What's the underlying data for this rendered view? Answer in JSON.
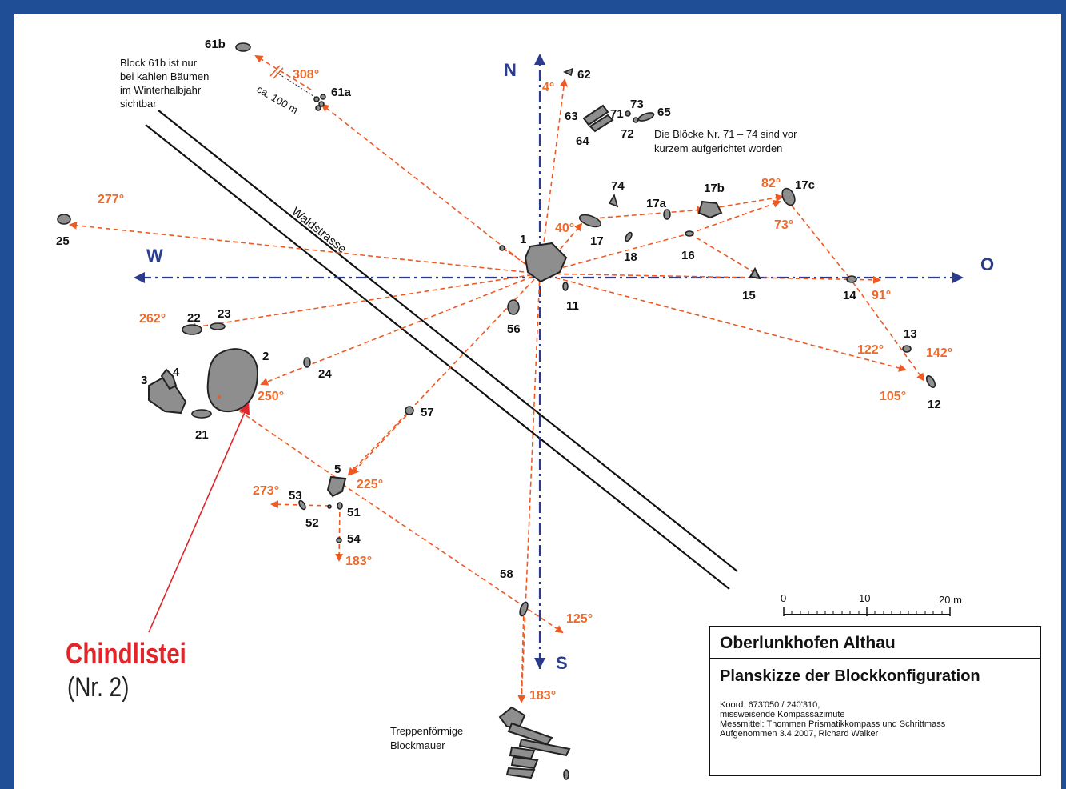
{
  "title": "Oberlunkhofen Althau",
  "subtitle": "Planskizze der Blockkonfiguration",
  "meta": [
    "Koord. 673'050 / 240'310,",
    "missweisende Kompassazimute",
    "Messmittel: Thommen Prismatikkompass und Schrittmass",
    "Aufgenommen 3.4.2007, Richard Walker"
  ],
  "highlight": {
    "name": "Chindlistei",
    "sub": "(Nr. 2)",
    "color": "#e0262a"
  },
  "directions": {
    "north": "N",
    "south": "S",
    "west": "W",
    "east": "O"
  },
  "road_label": "Waldstrasse",
  "notes": {
    "block61b": [
      "Block 61b ist nur",
      "bei kahlen Bäumen",
      "im Winterhalbjahr",
      "sichtbar"
    ],
    "blocks71_74": [
      "Die Blöcke Nr. 71 – 74 sind vor",
      "kurzem aufgerichtet worden"
    ],
    "distance": "ca. 100 m",
    "wall": [
      "Treppenförmige",
      "Blockmauer"
    ]
  },
  "scale": {
    "ticks": [
      "0",
      "10",
      "20 m"
    ]
  },
  "block_labels": [
    "61b",
    "61a",
    "62",
    "63",
    "64",
    "71",
    "72",
    "73",
    "65",
    "74",
    "17a",
    "17b",
    "17c",
    "17",
    "18",
    "16",
    "1",
    "11",
    "15",
    "14",
    "13",
    "12",
    "56",
    "25",
    "22",
    "23",
    "2",
    "24",
    "3",
    "4",
    "21",
    "57",
    "5",
    "53",
    "51",
    "52",
    "54",
    "58"
  ],
  "angles": [
    "308°",
    "4°",
    "82°",
    "73°",
    "40°",
    "277°",
    "262°",
    "250°",
    "225°",
    "273°",
    "183°",
    "125°",
    "183°",
    "91°",
    "122°",
    "142°",
    "105°"
  ],
  "colors": {
    "frame": "#1f4e96",
    "rays": "#ee5a24",
    "axis": "#2b3a8a",
    "blocks": "#8e8e8e"
  }
}
